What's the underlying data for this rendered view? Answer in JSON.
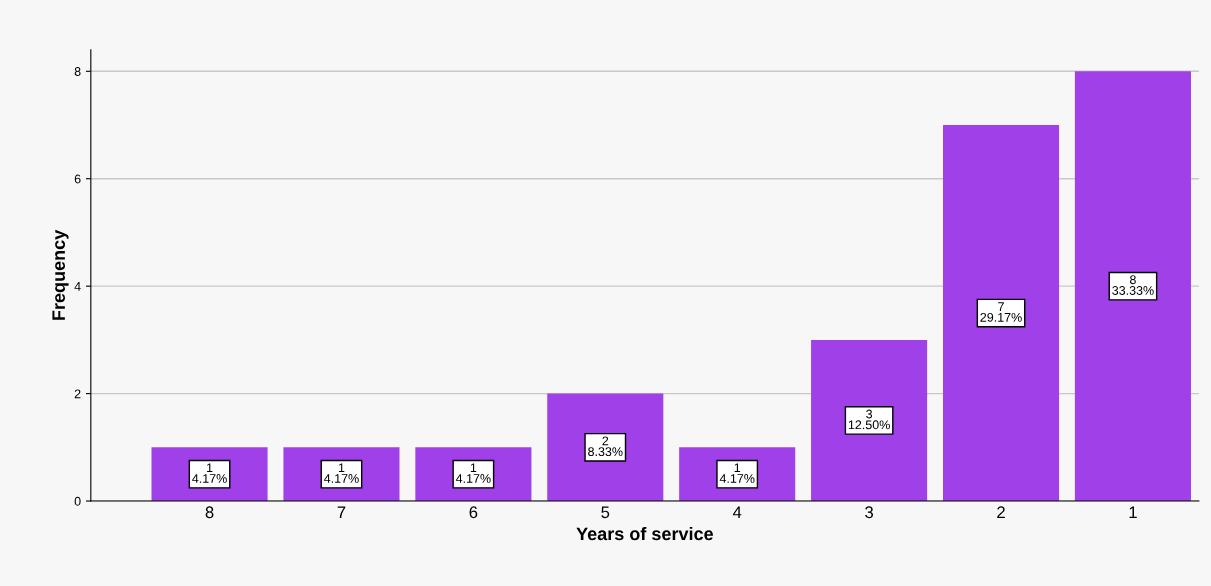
{
  "chart_data": {
    "type": "bar",
    "xlabel": "Years of service",
    "ylabel": "Frequency",
    "categories": [
      "8",
      "7",
      "6",
      "5",
      "4",
      "3",
      "2",
      "1"
    ],
    "values": [
      1,
      1,
      1,
      2,
      1,
      3,
      7,
      8
    ],
    "value_labels": [
      "1\n4.17%",
      "1\n4.17%",
      "1\n4.17%",
      "2\n8.33%",
      "1\n4.17%",
      "3\n12.50%",
      "7\n29.17%",
      "8\n33.33%"
    ],
    "color": "#a040e8",
    "ylim": [
      0,
      8.4
    ],
    "yticks": [
      0,
      2,
      4,
      6,
      8
    ],
    "grid": "y"
  }
}
